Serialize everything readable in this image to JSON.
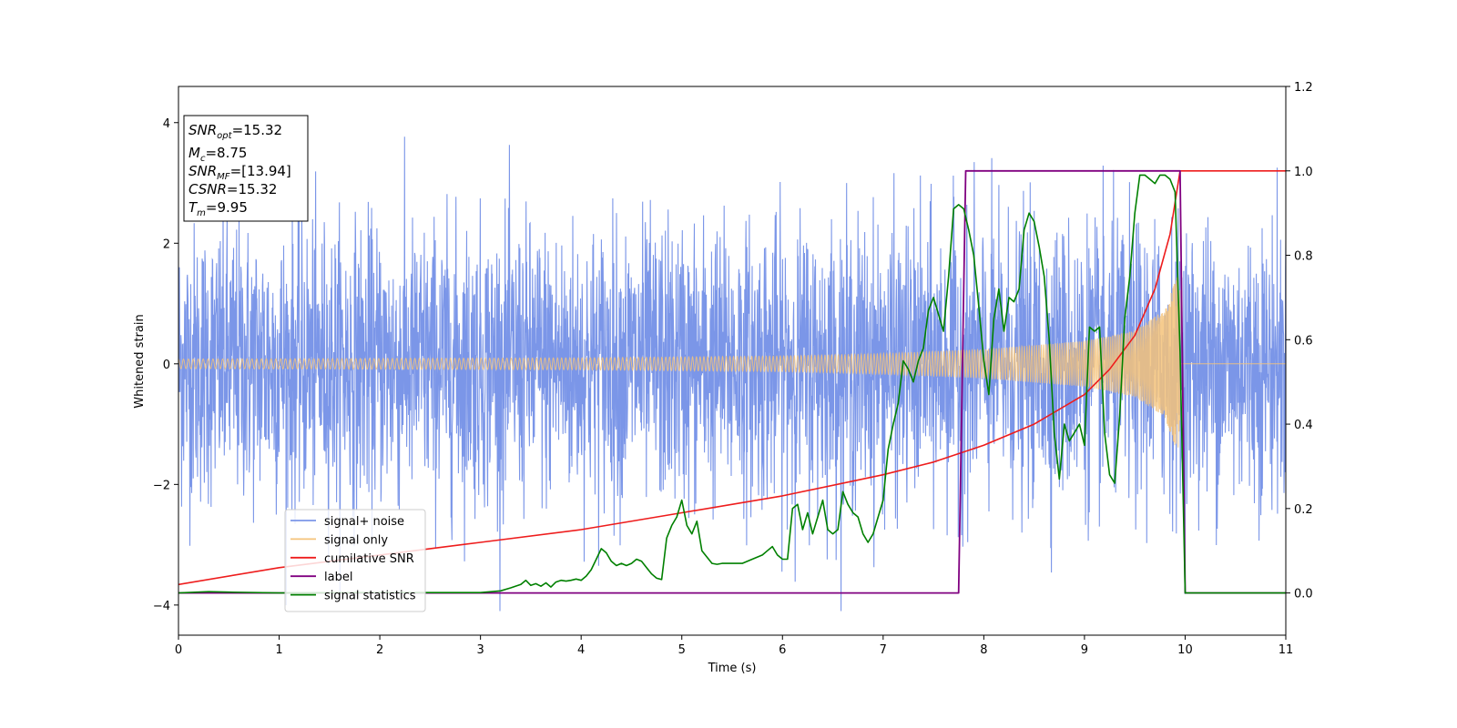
{
  "chart_data": {
    "type": "line",
    "xlabel": "Time (s)",
    "ylabel": "Whitened strain",
    "xlim": [
      0,
      11
    ],
    "ylim_left": [
      -4.5,
      4.6
    ],
    "ylim_right": [
      -0.1,
      1.2
    ],
    "x_ticks": [
      0,
      1,
      2,
      3,
      4,
      5,
      6,
      7,
      8,
      9,
      10,
      11
    ],
    "y_ticks_left": [
      -4,
      -2,
      0,
      2,
      4
    ],
    "y_ticks_left_labels": [
      "−4",
      "−2",
      "0",
      "2",
      "4"
    ],
    "y_ticks_right": [
      0.0,
      0.2,
      0.4,
      0.6,
      0.8,
      1.0,
      1.2
    ],
    "y_ticks_right_labels": [
      "0.0",
      "0.2",
      "0.4",
      "0.6",
      "0.8",
      "1.0",
      "1.2"
    ],
    "legend_position": "lower-left",
    "legend": [
      {
        "name": "signal+ noise",
        "color": "#7b96e8"
      },
      {
        "name": "signal only",
        "color": "#f5c37a"
      },
      {
        "name": "cumilative SNR",
        "color": "#ee1c1c"
      },
      {
        "name": "label",
        "color": "#800080"
      },
      {
        "name": "signal statistics",
        "color": "#008000"
      }
    ],
    "info_box": {
      "snr_opt": {
        "base": "SNR",
        "sub": "opt",
        "value": "=15.32"
      },
      "mc": {
        "base": "M",
        "sub": "c",
        "value": "=8.75"
      },
      "snr_mf": {
        "base": "SNR",
        "sub": "MF",
        "value": "=[13.94]"
      },
      "csnr": {
        "base": "CSNR",
        "value": "=15.32"
      },
      "tm": {
        "base": "T",
        "sub": "m",
        "value": "=9.95"
      }
    },
    "series": [
      {
        "name": "signal+ noise",
        "axis": "left",
        "color": "#7b96e8",
        "x_range": [
          0,
          11
        ],
        "envelope_ymax_approx": 4.1,
        "envelope_ymin_approx": -4.1
      },
      {
        "name": "signal only",
        "axis": "left",
        "color": "#f5c37a",
        "chirp_end": 9.95,
        "amplitude_at": {
          "x": [
            0,
            2,
            4,
            6,
            7,
            8,
            9,
            9.5,
            9.8,
            9.95
          ],
          "y": [
            0.08,
            0.09,
            0.1,
            0.13,
            0.17,
            0.24,
            0.38,
            0.55,
            0.9,
            1.6
          ]
        }
      },
      {
        "name": "cumilative SNR",
        "axis": "right",
        "color": "#ee1c1c",
        "x": [
          0,
          1,
          2,
          3,
          4,
          5,
          6,
          7,
          7.5,
          8,
          8.5,
          9,
          9.25,
          9.5,
          9.7,
          9.85,
          9.95,
          11
        ],
        "y": [
          0.02,
          0.06,
          0.09,
          0.12,
          0.15,
          0.19,
          0.23,
          0.28,
          0.31,
          0.35,
          0.4,
          0.47,
          0.53,
          0.61,
          0.72,
          0.85,
          1.0,
          1.0
        ]
      },
      {
        "name": "label",
        "axis": "right",
        "color": "#800080",
        "x": [
          0,
          7.75,
          7.82,
          9.95,
          10.0,
          11
        ],
        "y": [
          0,
          0,
          1,
          1,
          0,
          0
        ]
      },
      {
        "name": "signal statistics",
        "axis": "right",
        "color": "#008000",
        "x": [
          0,
          0.3,
          0.5,
          1,
          2,
          3,
          3.2,
          3.3,
          3.4,
          3.45,
          3.5,
          3.55,
          3.6,
          3.65,
          3.7,
          3.75,
          3.8,
          3.85,
          3.9,
          3.95,
          4.0,
          4.05,
          4.1,
          4.15,
          4.2,
          4.25,
          4.3,
          4.35,
          4.4,
          4.45,
          4.5,
          4.55,
          4.6,
          4.65,
          4.7,
          4.75,
          4.8,
          4.85,
          4.9,
          4.95,
          5.0,
          5.05,
          5.1,
          5.15,
          5.2,
          5.25,
          5.3,
          5.35,
          5.4,
          5.5,
          5.6,
          5.7,
          5.8,
          5.85,
          5.9,
          5.95,
          6.0,
          6.05,
          6.1,
          6.15,
          6.2,
          6.25,
          6.3,
          6.35,
          6.4,
          6.45,
          6.5,
          6.55,
          6.6,
          6.65,
          6.7,
          6.75,
          6.8,
          6.85,
          6.9,
          6.95,
          7.0,
          7.05,
          7.1,
          7.15,
          7.2,
          7.25,
          7.3,
          7.35,
          7.4,
          7.45,
          7.5,
          7.55,
          7.6,
          7.65,
          7.7,
          7.75,
          7.8,
          7.85,
          7.9,
          7.95,
          8.0,
          8.05,
          8.1,
          8.15,
          8.2,
          8.25,
          8.3,
          8.35,
          8.4,
          8.45,
          8.5,
          8.55,
          8.6,
          8.65,
          8.7,
          8.75,
          8.8,
          8.85,
          8.9,
          8.95,
          9.0,
          9.05,
          9.1,
          9.15,
          9.2,
          9.25,
          9.3,
          9.35,
          9.4,
          9.45,
          9.5,
          9.55,
          9.6,
          9.65,
          9.7,
          9.75,
          9.8,
          9.85,
          9.9,
          9.95,
          10.0,
          11
        ],
        "y": [
          0.0,
          0.003,
          0.002,
          0.0,
          0.001,
          0.001,
          0.005,
          0.012,
          0.02,
          0.03,
          0.018,
          0.022,
          0.016,
          0.024,
          0.014,
          0.026,
          0.03,
          0.028,
          0.03,
          0.033,
          0.03,
          0.04,
          0.055,
          0.08,
          0.105,
          0.095,
          0.075,
          0.065,
          0.07,
          0.065,
          0.07,
          0.08,
          0.075,
          0.06,
          0.045,
          0.035,
          0.032,
          0.13,
          0.16,
          0.18,
          0.22,
          0.16,
          0.14,
          0.17,
          0.1,
          0.085,
          0.07,
          0.068,
          0.07,
          0.07,
          0.07,
          0.08,
          0.09,
          0.1,
          0.11,
          0.09,
          0.08,
          0.08,
          0.2,
          0.21,
          0.15,
          0.19,
          0.14,
          0.18,
          0.22,
          0.15,
          0.14,
          0.15,
          0.24,
          0.21,
          0.19,
          0.18,
          0.14,
          0.12,
          0.14,
          0.18,
          0.22,
          0.34,
          0.4,
          0.45,
          0.55,
          0.53,
          0.5,
          0.55,
          0.58,
          0.67,
          0.7,
          0.66,
          0.62,
          0.75,
          0.91,
          0.92,
          0.91,
          0.86,
          0.8,
          0.68,
          0.55,
          0.47,
          0.65,
          0.72,
          0.62,
          0.7,
          0.69,
          0.72,
          0.86,
          0.9,
          0.88,
          0.82,
          0.75,
          0.6,
          0.38,
          0.27,
          0.4,
          0.36,
          0.38,
          0.4,
          0.35,
          0.63,
          0.62,
          0.63,
          0.38,
          0.28,
          0.26,
          0.42,
          0.65,
          0.75,
          0.9,
          0.99,
          0.99,
          0.98,
          0.97,
          0.99,
          0.99,
          0.98,
          0.95,
          0.57,
          0.0,
          0.0
        ]
      }
    ]
  }
}
